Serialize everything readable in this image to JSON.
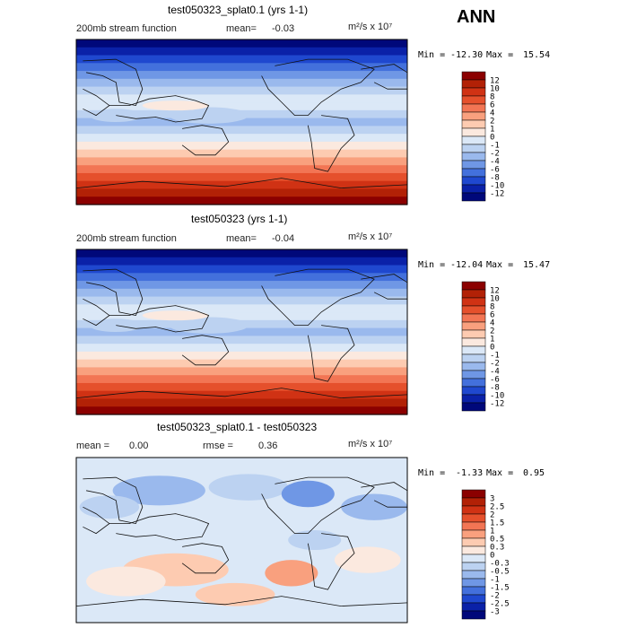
{
  "season": "ANN",
  "chart_data": [
    {
      "type": "heatmap",
      "title": "test050323_splat0.1 (yrs 1-1)",
      "subtitle": "200mb stream function",
      "mean_label": "mean=",
      "mean": "-0.03",
      "units": "m²/s x 10⁷",
      "min_label": "Min =",
      "min": "-12.30",
      "max_label": "Max =",
      "max": "15.54",
      "levels": [
        "12",
        "10",
        "8",
        "6",
        "4",
        "2",
        "1",
        "0",
        "-1",
        "-2",
        "-4",
        "-6",
        "-8",
        "-10",
        "-12"
      ],
      "colors": [
        "#8b0000",
        "#b22106",
        "#d03214",
        "#e5502c",
        "#f27554",
        "#f9a07e",
        "#fdcbb1",
        "#fbe9df",
        "#dbe8f7",
        "#bcd2f1",
        "#9ab9ed",
        "#6f97e5",
        "#4370dc",
        "#1f48cf",
        "#0a21a8",
        "#00087a"
      ]
    },
    {
      "type": "heatmap",
      "title": "test050323 (yrs 1-1)",
      "subtitle": "200mb stream function",
      "mean_label": "mean=",
      "mean": "-0.04",
      "units": "m²/s x 10⁷",
      "min_label": "Min =",
      "min": "-12.04",
      "max_label": "Max =",
      "max": "15.47",
      "levels": [
        "12",
        "10",
        "8",
        "6",
        "4",
        "2",
        "1",
        "0",
        "-1",
        "-2",
        "-4",
        "-6",
        "-8",
        "-10",
        "-12"
      ],
      "colors": [
        "#8b0000",
        "#b22106",
        "#d03214",
        "#e5502c",
        "#f27554",
        "#f9a07e",
        "#fdcbb1",
        "#fbe9df",
        "#dbe8f7",
        "#bcd2f1",
        "#9ab9ed",
        "#6f97e5",
        "#4370dc",
        "#1f48cf",
        "#0a21a8",
        "#00087a"
      ]
    },
    {
      "type": "heatmap",
      "title": "test050323_splat0.1 - test050323",
      "mean_label": "mean =",
      "mean": "0.00",
      "rmse_label": "rmse =",
      "rmse": "0.36",
      "units": "m²/s x 10⁷",
      "min_label": "Min =",
      "min": "-1.33",
      "max_label": "Max =",
      "max": "0.95",
      "levels": [
        "3",
        "2.5",
        "2",
        "1.5",
        "1",
        "0.5",
        "0.3",
        "0",
        "-0.3",
        "-0.5",
        "-1",
        "-1.5",
        "-2",
        "-2.5",
        "-3"
      ],
      "colors": [
        "#8b0000",
        "#b22106",
        "#d03214",
        "#e5502c",
        "#f27554",
        "#f9a07e",
        "#fdcbb1",
        "#fbe9df",
        "#dbe8f7",
        "#bcd2f1",
        "#9ab9ed",
        "#6f97e5",
        "#4370dc",
        "#1f48cf",
        "#0a21a8",
        "#00087a"
      ]
    }
  ]
}
